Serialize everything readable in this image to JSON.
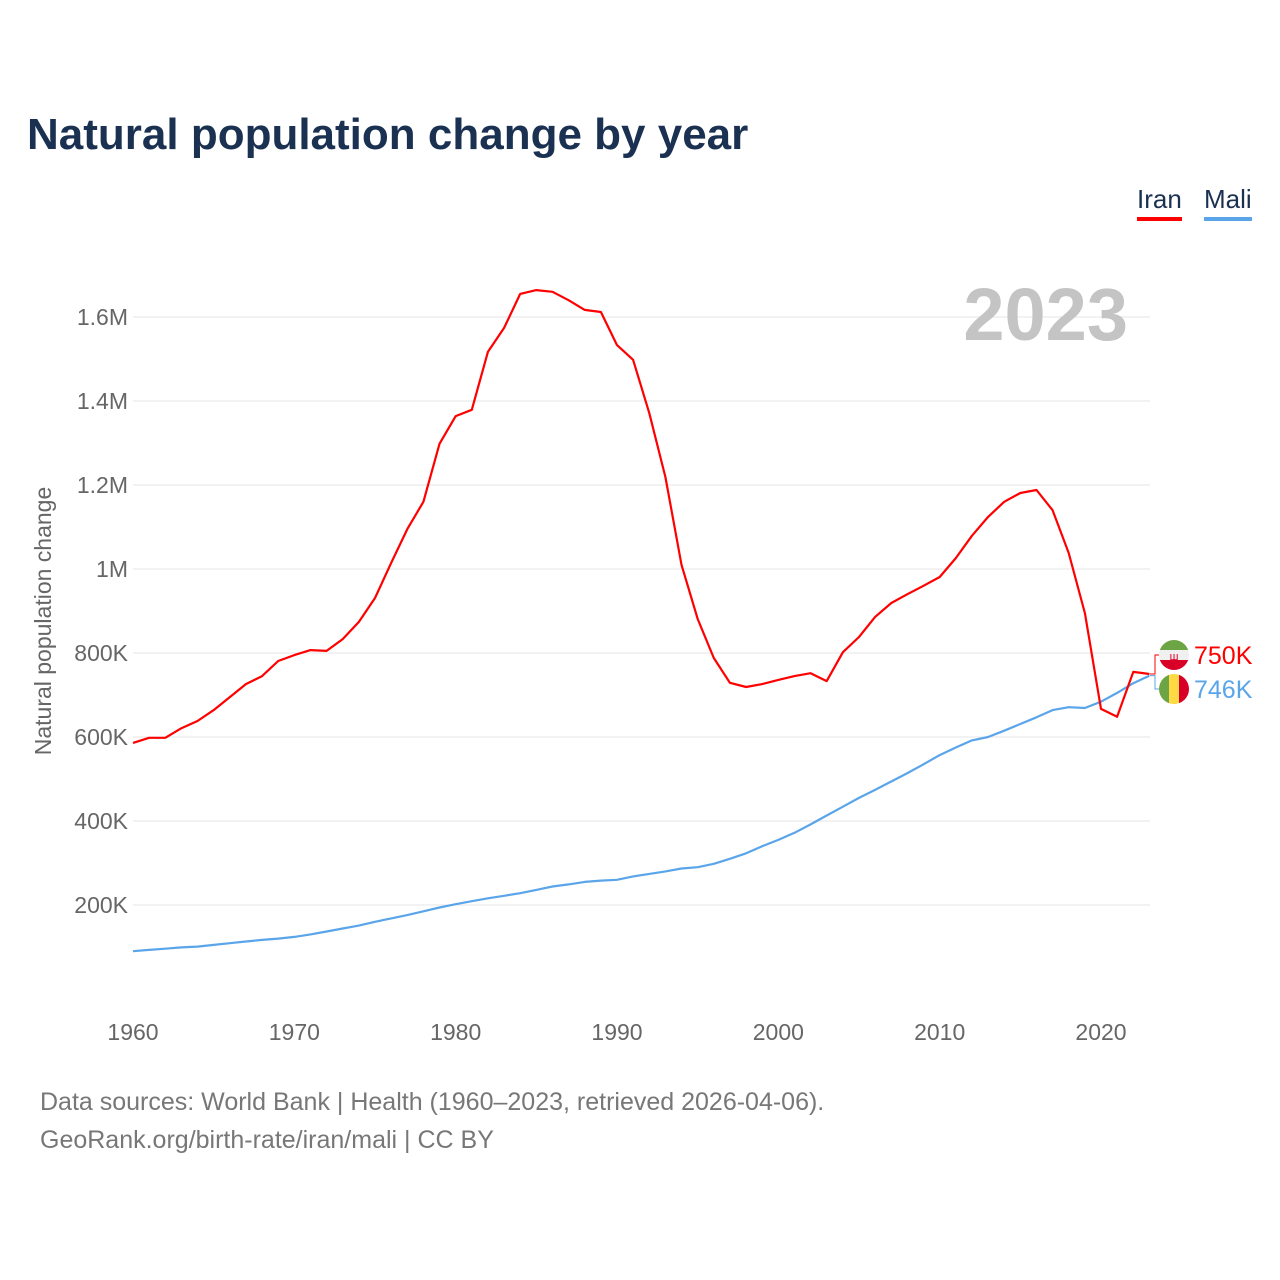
{
  "title": "Natural population change by year",
  "legend": {
    "iran": "Iran",
    "mali": "Mali"
  },
  "footer": {
    "line1": "Data sources: World Bank | Health (1960–2023, retrieved 2026-04-06).",
    "line2": "GeoRank.org/birth-rate/iran/mali | CC BY"
  },
  "chart_data": {
    "type": "line",
    "title": "Natural population change by year",
    "xlabel": "",
    "ylabel": "Natural population change",
    "year_watermark": "2023",
    "x": [
      1960,
      1961,
      1962,
      1963,
      1964,
      1965,
      1966,
      1967,
      1968,
      1969,
      1970,
      1971,
      1972,
      1973,
      1974,
      1975,
      1976,
      1977,
      1978,
      1979,
      1980,
      1981,
      1982,
      1983,
      1984,
      1985,
      1986,
      1987,
      1988,
      1989,
      1990,
      1991,
      1992,
      1993,
      1994,
      1995,
      1996,
      1997,
      1998,
      1999,
      2000,
      2001,
      2002,
      2003,
      2004,
      2005,
      2006,
      2007,
      2008,
      2009,
      2010,
      2011,
      2012,
      2013,
      2014,
      2015,
      2016,
      2017,
      2018,
      2019,
      2020,
      2021,
      2022,
      2023
    ],
    "xlim": [
      1960,
      2023
    ],
    "ylim": [
      0,
      1700000
    ],
    "xticks": [
      {
        "v": 1960,
        "label": "1960"
      },
      {
        "v": 1970,
        "label": "1970"
      },
      {
        "v": 1980,
        "label": "1980"
      },
      {
        "v": 1990,
        "label": "1990"
      },
      {
        "v": 2000,
        "label": "2000"
      },
      {
        "v": 2010,
        "label": "2010"
      },
      {
        "v": 2020,
        "label": "2020"
      }
    ],
    "yticks": [
      {
        "v": 200000,
        "label": "200K"
      },
      {
        "v": 400000,
        "label": "400K"
      },
      {
        "v": 600000,
        "label": "600K"
      },
      {
        "v": 800000,
        "label": "800K"
      },
      {
        "v": 1000000,
        "label": "1M"
      },
      {
        "v": 1200000,
        "label": "1.2M"
      },
      {
        "v": 1400000,
        "label": "1.4M"
      },
      {
        "v": 1600000,
        "label": "1.6M"
      }
    ],
    "grid": true,
    "legend_position": "top-right",
    "series": [
      {
        "name": "Iran",
        "color": "#ff0000",
        "end_label": "750K",
        "values": [
          586000,
          598000,
          598000,
          621000,
          638000,
          664000,
          695000,
          726000,
          745000,
          781000,
          795000,
          807000,
          805000,
          833000,
          874000,
          931000,
          1014000,
          1095000,
          1160000,
          1298000,
          1364000,
          1379000,
          1517000,
          1574000,
          1655000,
          1664000,
          1660000,
          1640000,
          1617000,
          1612000,
          1533000,
          1498000,
          1371000,
          1219000,
          1010000,
          881000,
          788000,
          729000,
          719000,
          726000,
          736000,
          745000,
          752000,
          733000,
          802000,
          838000,
          886000,
          919000,
          940000,
          960000,
          981000,
          1026000,
          1079000,
          1124000,
          1160000,
          1181000,
          1188000,
          1140000,
          1038000,
          895000,
          667000,
          648000,
          755000,
          750000
        ]
      },
      {
        "name": "Mali",
        "color": "#5aa5ea",
        "end_label": "746K",
        "values": [
          90000,
          93000,
          96000,
          99000,
          101000,
          105000,
          109000,
          113000,
          117000,
          120000,
          124000,
          130000,
          137000,
          144000,
          151000,
          160000,
          168000,
          176000,
          185000,
          194000,
          202000,
          209000,
          216000,
          222000,
          228000,
          236000,
          244000,
          249000,
          255000,
          258000,
          260000,
          268000,
          274000,
          280000,
          287000,
          290000,
          298000,
          310000,
          323000,
          340000,
          355000,
          372000,
          392000,
          413000,
          434000,
          455000,
          474000,
          494000,
          514000,
          535000,
          557000,
          575000,
          592000,
          600000,
          615000,
          631000,
          647000,
          664000,
          671000,
          669000,
          684000,
          705000,
          728000,
          746000
        ]
      }
    ]
  }
}
